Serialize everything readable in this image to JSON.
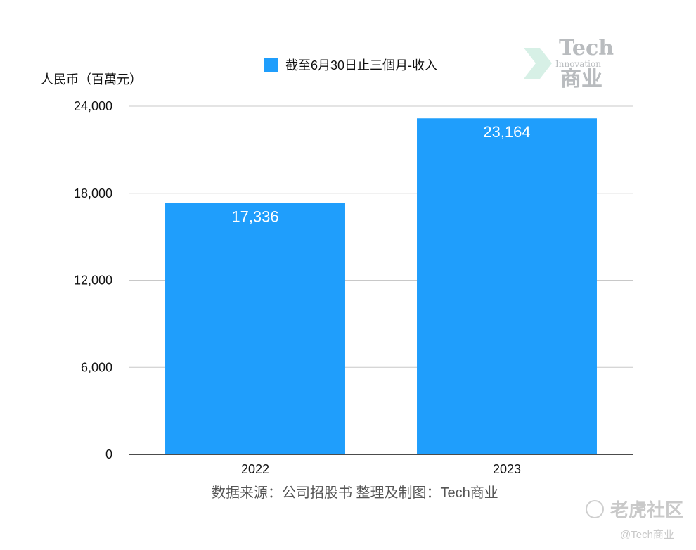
{
  "chart_data": {
    "type": "bar",
    "categories": [
      "2022",
      "2023"
    ],
    "series": [
      {
        "name": "截至6月30日止三個月-收入",
        "values": [
          17336,
          23164
        ],
        "labels": [
          "17,336",
          "23,164"
        ]
      }
    ],
    "ylabel": "人民币（百萬元）",
    "ylim": [
      0,
      24000
    ],
    "yticks": [
      0,
      6000,
      12000,
      18000,
      24000
    ],
    "ytick_labels": [
      "0",
      "6,000",
      "12,000",
      "18,000",
      "24,000"
    ],
    "grid": true,
    "legend_position": "top-center",
    "bar_color": "#1f9efc",
    "source": "数据来源：公司招股书  整理及制图：Tech商业"
  },
  "watermarks": {
    "logo_tech": "Tech",
    "logo_innovation": "Innovation",
    "logo_cn": "商业",
    "tiger_brand": "老虎社区",
    "handle": "@Tech商业"
  }
}
